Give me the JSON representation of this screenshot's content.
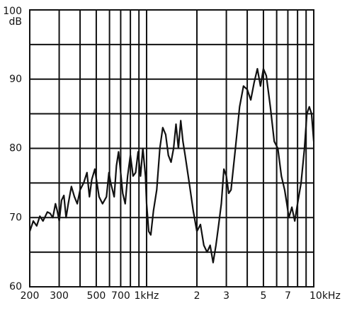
{
  "chart_data": {
    "type": "line",
    "ylabel": "dB",
    "xlog": true,
    "grid": true,
    "xlim": [
      200,
      10000
    ],
    "ylim": [
      60,
      100
    ],
    "xticks": [
      200,
      300,
      500,
      700,
      {
        "value": 1000,
        "label": "1kHz"
      },
      {
        "value": 2000,
        "label": "2"
      },
      {
        "value": 3000,
        "label": "3"
      },
      {
        "value": 5000,
        "label": "5"
      },
      {
        "value": 7000,
        "label": "7"
      },
      {
        "value": 10000,
        "label": "10kHz"
      }
    ],
    "xminor": [
      400,
      600,
      800,
      900,
      4000,
      6000,
      8000,
      9000
    ],
    "yticks": [
      60,
      70,
      80,
      90,
      100
    ],
    "yminor": [
      65,
      75,
      85,
      95
    ],
    "color": "#111111",
    "x": [
      200,
      210,
      220,
      230,
      240,
      255,
      265,
      275,
      285,
      292,
      300,
      310,
      320,
      330,
      340,
      355,
      370,
      385,
      400,
      420,
      440,
      455,
      470,
      490,
      505,
      520,
      545,
      575,
      595,
      610,
      625,
      640,
      660,
      680,
      700,
      720,
      745,
      770,
      800,
      830,
      860,
      890,
      920,
      950,
      985,
      1000,
      1030,
      1060,
      1100,
      1150,
      1200,
      1250,
      1300,
      1350,
      1400,
      1450,
      1500,
      1550,
      1600,
      1650,
      1700,
      1800,
      1900,
      2000,
      2100,
      2200,
      2300,
      2400,
      2500,
      2600,
      2700,
      2800,
      2900,
      3000,
      3100,
      3200,
      3400,
      3600,
      3800,
      4000,
      4200,
      4400,
      4600,
      4800,
      5000,
      5200,
      5500,
      5800,
      6100,
      6400,
      6700,
      6900,
      7100,
      7400,
      7700,
      8000,
      8400,
      8800,
      9100,
      9400,
      9700,
      10000
    ],
    "values": [
      68,
      69.5,
      68.8,
      70.2,
      69.5,
      70.8,
      70.6,
      70,
      72,
      71,
      69.5,
      72.5,
      73.2,
      70,
      72,
      74.5,
      73,
      72,
      74,
      75,
      76.5,
      73,
      75.5,
      77,
      75,
      73,
      72,
      73,
      76.5,
      75,
      74,
      73,
      77.5,
      79.5,
      76.5,
      73.5,
      72,
      76,
      79,
      76,
      76.5,
      79.5,
      76,
      80,
      76,
      72,
      68,
      67.5,
      71,
      74,
      80,
      83,
      82,
      79,
      78,
      80,
      83.5,
      80,
      84,
      81,
      79,
      75,
      71,
      68,
      69,
      66,
      65,
      66,
      63.5,
      66,
      69,
      72,
      77,
      76,
      73.5,
      74,
      80,
      86,
      89,
      88.5,
      87,
      89.5,
      91.5,
      89,
      91.5,
      90.5,
      86,
      81,
      80,
      76,
      74,
      72,
      70,
      71.5,
      69.5,
      72,
      75,
      80,
      85,
      86,
      85,
      81
    ]
  }
}
